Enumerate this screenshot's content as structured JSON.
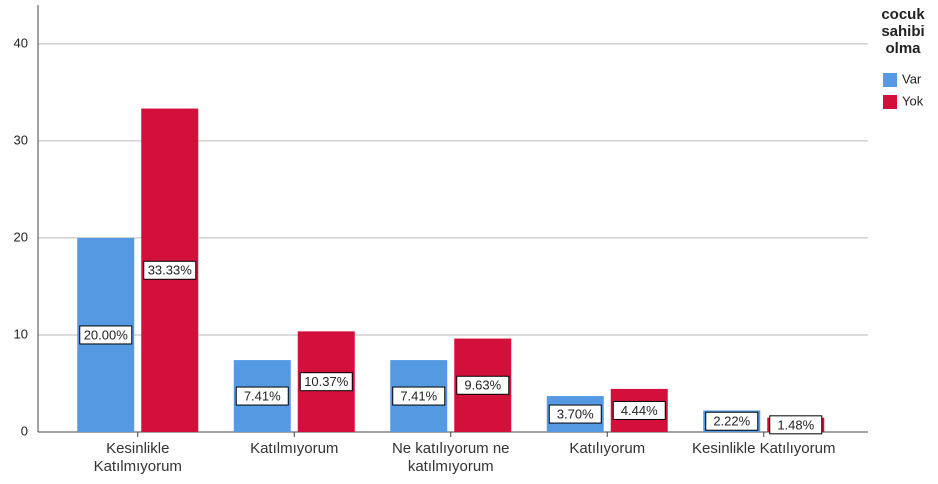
{
  "chart_data": {
    "type": "bar",
    "categories": [
      "Kesinlikle Katılmıyorum",
      "Katılmıyorum",
      "Ne katılıyorum ne katılmıyorum",
      "Katılıyorum",
      "Kesinlikle Katılıyorum"
    ],
    "series": [
      {
        "name": "Var",
        "color": "#5599e3",
        "values": [
          20.0,
          7.41,
          7.41,
          3.7,
          2.22
        ],
        "value_labels": [
          "20.00%",
          "7.41%",
          "7.41%",
          "3.70%",
          "2.22%"
        ]
      },
      {
        "name": "Yok",
        "color": "#d2103b",
        "values": [
          33.33,
          10.37,
          9.63,
          4.44,
          1.48
        ],
        "value_labels": [
          "33.33%",
          "10.37%",
          "9.63%",
          "4.44%",
          "1.48%"
        ]
      }
    ],
    "legend_title": "cocuk sahibi olma",
    "ylim": [
      0,
      44
    ],
    "yticks": [
      0,
      10,
      20,
      30,
      40
    ],
    "grid": true,
    "legend": "right"
  }
}
